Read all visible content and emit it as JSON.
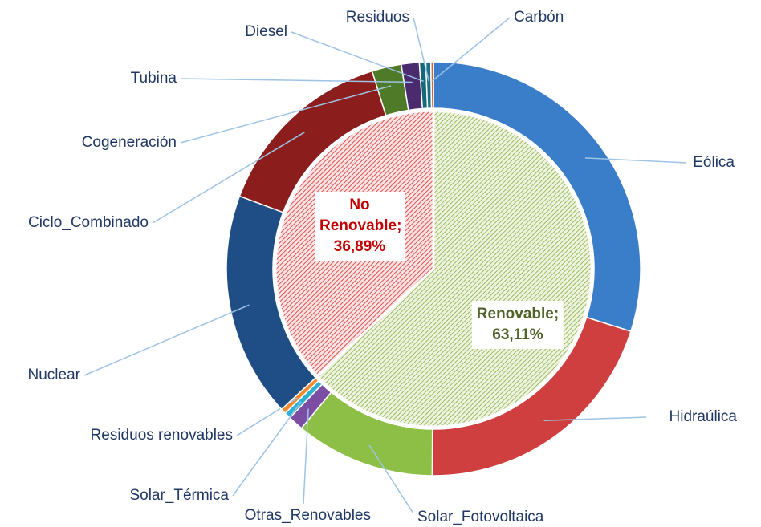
{
  "chart_data": {
    "type": "nested_pie",
    "inner": {
      "categories": [
        "Renovable",
        "No Renovable"
      ],
      "values": [
        63.11,
        36.89
      ],
      "value_labels": [
        "63,11%",
        "36,89%"
      ],
      "separator": ";",
      "colors": [
        "#9bbb59",
        "#e05050"
      ],
      "label_colors": [
        "#4f6228",
        "#c00000"
      ]
    },
    "outer": {
      "categories": [
        "Eólica",
        "Hidraúlica",
        "Solar_Fotovoltaica",
        "Otras_Renovables",
        "Solar_Térmica",
        "Residuos renovables",
        "Nuclear",
        "Ciclo_Combinado",
        "Cogeneración",
        "Tubina",
        "Diesel",
        "Residuos",
        "Carbón"
      ],
      "values": [
        29.9,
        20.2,
        10.9,
        1.2,
        0.5,
        0.41,
        17.6,
        14.5,
        2.3,
        1.4,
        0.5,
        0.39,
        0.2
      ],
      "colors": [
        "#3a7dc9",
        "#cf3f3f",
        "#8dbf47",
        "#7b4ea3",
        "#2fb0d3",
        "#f08a30",
        "#1f4e86",
        "#8b1d1d",
        "#4f7a28",
        "#4a2b6e",
        "#17677a",
        "#1b6f8a",
        "#d0662a"
      ]
    }
  }
}
